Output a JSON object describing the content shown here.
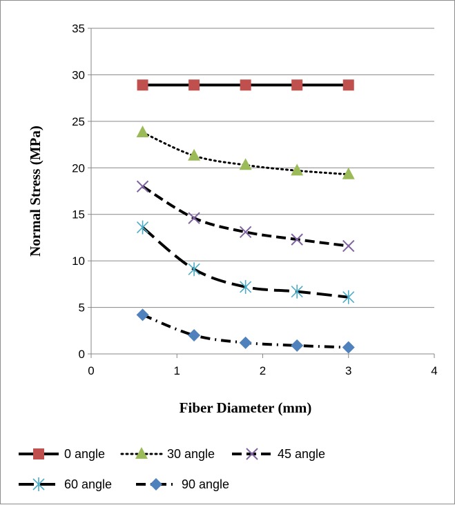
{
  "chart_data": {
    "type": "line",
    "title": "",
    "xlabel": "Fiber Diameter (mm)",
    "ylabel": "Normal Stress (MPa)",
    "xlim": [
      0,
      4
    ],
    "ylim": [
      0,
      35
    ],
    "x_ticks": [
      "0",
      "1",
      "2",
      "3",
      "4"
    ],
    "y_ticks": [
      "0",
      "5",
      "10",
      "15",
      "20",
      "25",
      "30",
      "35"
    ],
    "grid": "horizontal",
    "legend_position": "bottom",
    "x": [
      0.6,
      1.2,
      1.8,
      2.4,
      3.0
    ],
    "series": [
      {
        "name": "0 angle",
        "values": [
          28.9,
          28.9,
          28.9,
          28.9,
          28.9
        ],
        "marker": "square",
        "marker_color": "#c0504d",
        "line_style": "solid"
      },
      {
        "name": "30 angle",
        "values": [
          23.8,
          21.3,
          20.3,
          19.7,
          19.3
        ],
        "marker": "triangle",
        "marker_color": "#9bbb59",
        "line_style": "dotted"
      },
      {
        "name": "45 angle",
        "values": [
          18.0,
          14.6,
          13.1,
          12.3,
          11.6
        ],
        "marker": "x",
        "marker_color": "#8064a2",
        "line_style": "dashed"
      },
      {
        "name": "60 angle",
        "values": [
          13.6,
          9.1,
          7.2,
          6.7,
          6.1
        ],
        "marker": "asterisk",
        "marker_color": "#4bacc6",
        "line_style": "long-dash"
      },
      {
        "name": "90 angle",
        "values": [
          4.2,
          2.0,
          1.2,
          0.9,
          0.7
        ],
        "marker": "diamond",
        "marker_color": "#4f81bd",
        "line_style": "dash-dot"
      }
    ]
  }
}
